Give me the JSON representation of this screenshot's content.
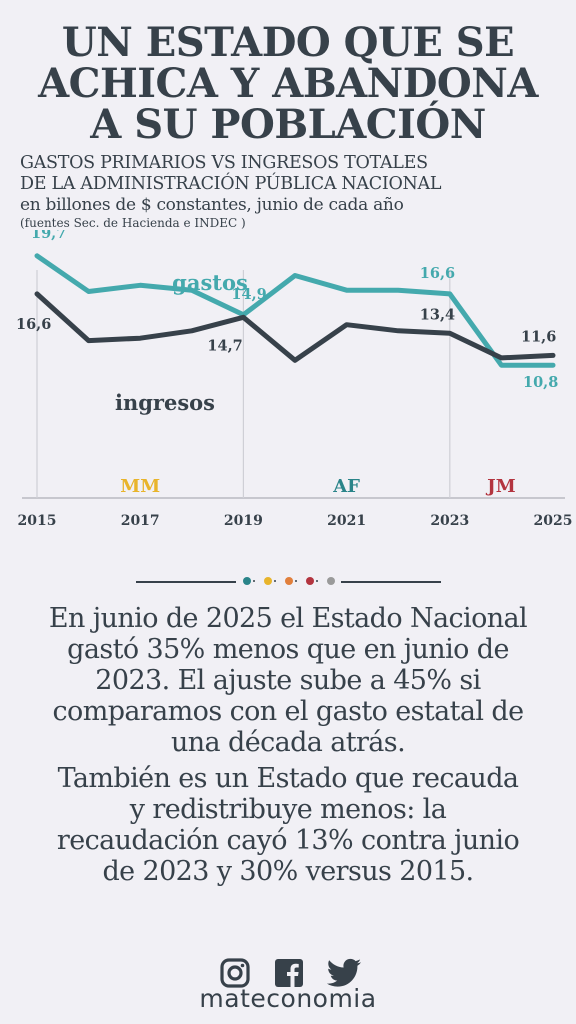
{
  "headline": [
    "UN ESTADO QUE SE",
    "ACHICA Y ABANDONA",
    "A SU POBLACIÓN"
  ],
  "subtitle": {
    "line1": "GASTOS PRIMARIOS VS INGRESOS TOTALES",
    "line2": "DE LA ADMINISTRACIÓN PÚBLICA NACIONAL",
    "line3": "en billones de $ constantes, junio de cada año",
    "line4": "(fuentes Sec. de Hacienda e INDEC )"
  },
  "colors": {
    "gastos": "#44a9ad",
    "ingresos": "#37414a",
    "mm": "#e8b42b",
    "af": "#2a8489",
    "jm": "#b3343f",
    "text": "#37414a",
    "background": "#f1f0f5"
  },
  "chart_data": {
    "type": "line",
    "x": [
      2015,
      2016,
      2017,
      2018,
      2019,
      2020,
      2021,
      2022,
      2023,
      2024,
      2025
    ],
    "xticks": [
      "2015",
      "2017",
      "2019",
      "2021",
      "2023",
      "2025"
    ],
    "ylim": [
      0,
      21.8
    ],
    "series": [
      {
        "name": "gastos",
        "values": [
          19.7,
          16.8,
          17.3,
          16.9,
          14.9,
          18.1,
          16.9,
          16.9,
          16.6,
          10.8,
          10.8
        ],
        "labels": [
          {
            "index": 0,
            "text": "19,7"
          },
          {
            "index": 4,
            "text": "14,9"
          },
          {
            "index": 8,
            "text": "16,6"
          },
          {
            "index": 10,
            "text": "10,8"
          }
        ]
      },
      {
        "name": "ingresos",
        "values": [
          16.6,
          12.8,
          13.0,
          13.6,
          14.7,
          11.2,
          14.1,
          13.6,
          13.4,
          11.4,
          11.6
        ],
        "labels": [
          {
            "index": 0,
            "text": "16,6"
          },
          {
            "index": 4,
            "text": "14,7"
          },
          {
            "index": 8,
            "text": "13,4"
          },
          {
            "index": 10,
            "text": "11,6"
          }
        ]
      }
    ],
    "periods": [
      {
        "label": "MM",
        "start": 2015,
        "end": 2019,
        "color": "#e8b42b"
      },
      {
        "label": "AF",
        "start": 2019,
        "end": 2023,
        "color": "#2a8489"
      },
      {
        "label": "JM",
        "start": 2023,
        "end": 2025,
        "color": "#b3343f"
      }
    ],
    "dividers": [
      2019,
      2023
    ]
  },
  "divider_dots": [
    "#2a8489",
    "#e8b42b",
    "#e17f3b",
    "#b3343f",
    "#9a9a9a"
  ],
  "paragraph1": [
    "En junio de 2025 el Estado Nacional",
    "gastó 35% menos que en junio de",
    "2023. El ajuste sube a 45% si",
    "comparamos con el gasto estatal de",
    "una década atrás."
  ],
  "paragraph2": [
    "También es un Estado que recauda",
    "y redistribuye menos: la",
    "recaudación cayó 13% contra junio",
    "de 2023 y 30% versus 2015."
  ],
  "social": {
    "icons": [
      "instagram-icon",
      "facebook-icon",
      "twitter-icon"
    ],
    "brand": "mateconomia"
  }
}
